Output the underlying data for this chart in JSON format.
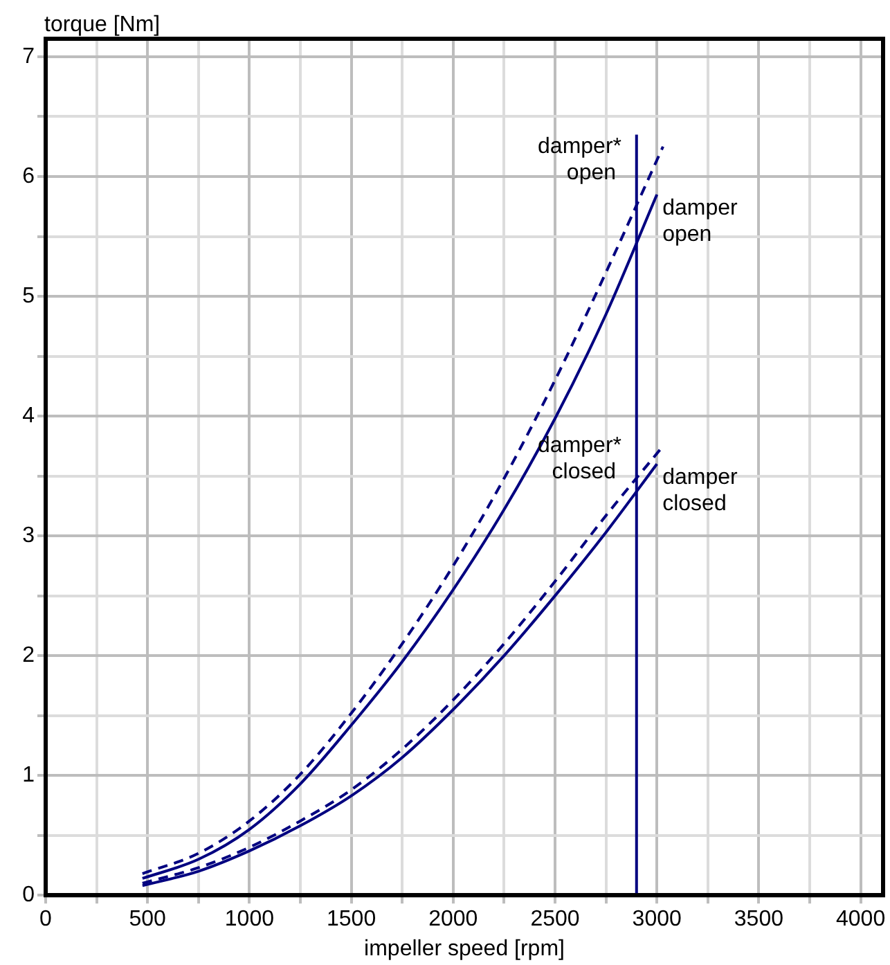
{
  "chart_data": {
    "type": "line",
    "xlabel": "impeller speed [rpm]",
    "ylabel": "torque [Nm]",
    "xlim": [
      0,
      4110
    ],
    "ylim": [
      0,
      7.15
    ],
    "xticks": [
      0,
      {
        "value": 250,
        "label": null
      },
      500,
      {
        "value": 750,
        "label": null
      },
      1000,
      {
        "value": 1250,
        "label": null
      },
      1500,
      {
        "value": 1750,
        "label": null
      },
      2000,
      {
        "value": 2250,
        "label": null
      },
      2500,
      {
        "value": 2750,
        "label": null
      },
      3000,
      {
        "value": 3250,
        "label": null
      },
      3500,
      {
        "value": 3750,
        "label": null
      },
      4000
    ],
    "yticks": [
      0,
      {
        "value": 0.5,
        "label": null
      },
      1,
      {
        "value": 1.5,
        "label": null
      },
      2,
      {
        "value": 2.5,
        "label": null
      },
      3,
      {
        "value": 3.5,
        "label": null
      },
      4,
      {
        "value": 4.5,
        "label": null
      },
      5,
      {
        "value": 5.5,
        "label": null
      },
      6,
      {
        "value": 6.5,
        "label": null
      },
      7
    ],
    "grid": true,
    "legend": false,
    "marker": "none",
    "series": [
      {
        "name": "damper* open",
        "color": "#000080",
        "line_style": "dashed",
        "x": [
          475,
          750,
          1000,
          1250,
          1500,
          1750,
          2000,
          2250,
          2500,
          2750,
          3030
        ],
        "values": [
          0.18,
          0.35,
          0.62,
          1.01,
          1.52,
          2.1,
          2.75,
          3.48,
          4.3,
          5.2,
          6.25
        ]
      },
      {
        "name": "damper open",
        "color": "#000080",
        "line_style": "solid",
        "x": [
          475,
          750,
          1000,
          1250,
          1500,
          1750,
          2000,
          2250,
          2500,
          2750,
          3000
        ],
        "values": [
          0.14,
          0.3,
          0.55,
          0.93,
          1.42,
          1.95,
          2.55,
          3.22,
          3.98,
          4.85,
          5.85
        ]
      },
      {
        "name": "damper* closed",
        "color": "#000080",
        "line_style": "dashed",
        "x": [
          475,
          750,
          1000,
          1250,
          1500,
          1750,
          2000,
          2250,
          2500,
          2750,
          3030
        ],
        "values": [
          0.1,
          0.23,
          0.4,
          0.62,
          0.88,
          1.22,
          1.63,
          2.1,
          2.62,
          3.17,
          3.75
        ]
      },
      {
        "name": "damper closed",
        "color": "#000080",
        "line_style": "solid",
        "x": [
          475,
          750,
          1000,
          1250,
          1500,
          1750,
          2000,
          2250,
          2500,
          2750,
          3000
        ],
        "values": [
          0.08,
          0.2,
          0.37,
          0.58,
          0.83,
          1.15,
          1.55,
          2.0,
          2.5,
          3.03,
          3.6
        ]
      },
      {
        "color": "#000080",
        "line_style": "solid",
        "x": [
          2900,
          2900
        ],
        "values": [
          0,
          6.35
        ]
      }
    ]
  }
}
